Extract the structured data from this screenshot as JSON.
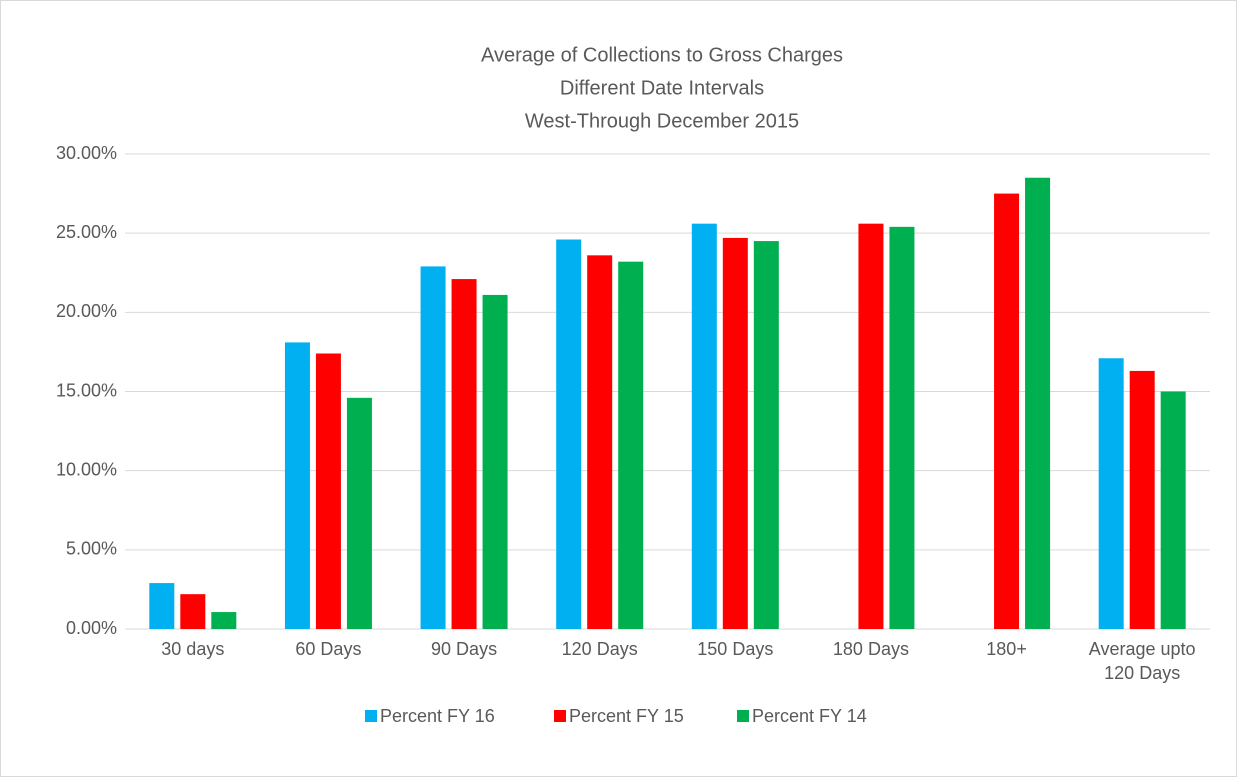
{
  "chart_data": {
    "type": "bar",
    "title": [
      "Average  of Collections to Gross Charges",
      "Different Date Intervals",
      "West-Through December 2015"
    ],
    "categories": [
      "30 days",
      "60 Days",
      "90 Days",
      "120 Days",
      "150 Days",
      "180 Days",
      "180+",
      "Average upto 120 Days"
    ],
    "series": [
      {
        "name": "Percent FY 16",
        "color": "#00b0f0",
        "values": [
          2.9,
          18.1,
          22.9,
          24.6,
          25.6,
          null,
          null,
          17.1
        ]
      },
      {
        "name": "Percent FY 15",
        "color": "#ff0000",
        "values": [
          2.2,
          17.4,
          22.1,
          23.6,
          24.7,
          25.6,
          27.5,
          16.3
        ]
      },
      {
        "name": "Percent FY 14",
        "color": "#00b050",
        "values": [
          1.07,
          14.6,
          21.1,
          23.2,
          24.5,
          25.4,
          28.5,
          15.0
        ]
      }
    ],
    "ylim": [
      0,
      30
    ],
    "yticks": [
      {
        "value": 0,
        "label": "0.00%"
      },
      {
        "value": 5,
        "label": "5.00%"
      },
      {
        "value": 10,
        "label": "10.00%"
      },
      {
        "value": 15,
        "label": "15.00%"
      },
      {
        "value": 20,
        "label": "20.00%"
      },
      {
        "value": 25,
        "label": "25.00%"
      },
      {
        "value": 30,
        "label": "30.00%"
      }
    ],
    "grid": true,
    "legend": "bottom"
  }
}
